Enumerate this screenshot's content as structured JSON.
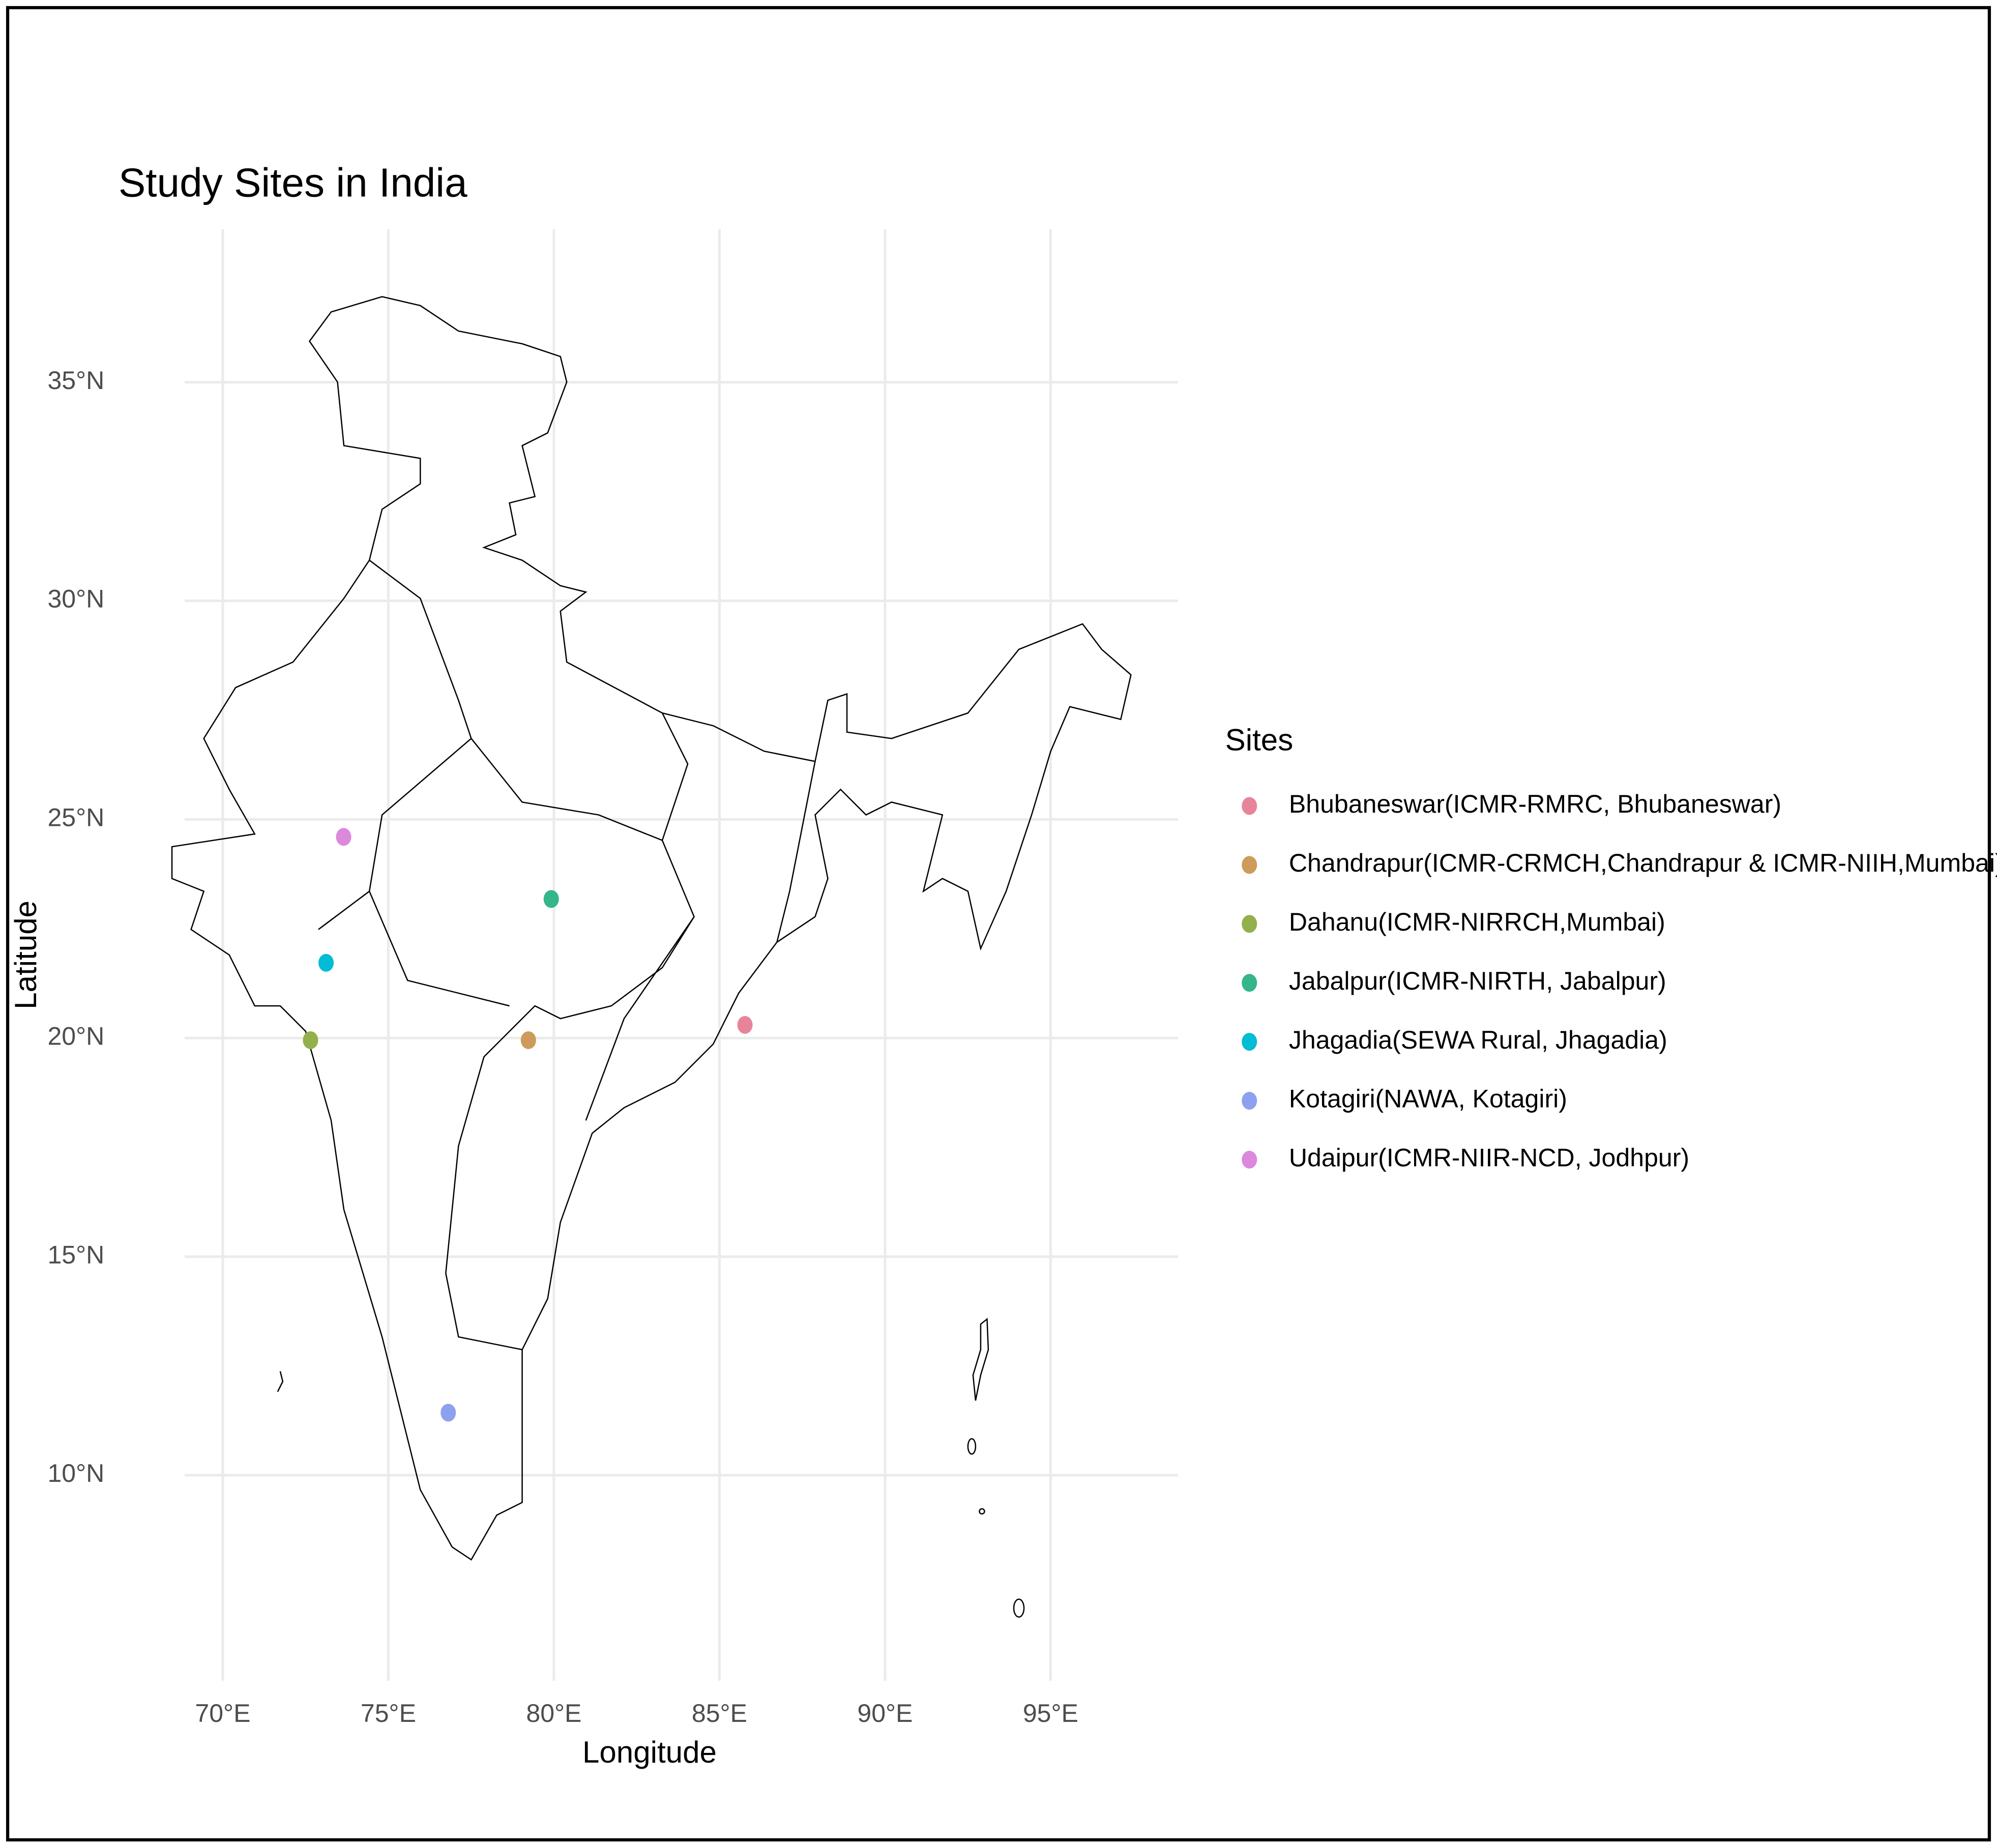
{
  "chart_data": {
    "type": "scatter",
    "title": "Study Sites in India",
    "x_label": "Longitude",
    "y_label": "Latitude",
    "legend_title": "Sites",
    "legend": "right",
    "grid": true,
    "xlim": [
      68.85,
      98.85
    ],
    "ylim": [
      5.3,
      38.5
    ],
    "xticks": [
      {
        "value": 70,
        "label": "70°E"
      },
      {
        "value": 75,
        "label": "75°E"
      },
      {
        "value": 80,
        "label": "80°E"
      },
      {
        "value": 85,
        "label": "85°E"
      },
      {
        "value": 90,
        "label": "90°E"
      },
      {
        "value": 95,
        "label": "95°E"
      }
    ],
    "yticks": [
      {
        "value": 10,
        "label": "10°N"
      },
      {
        "value": 15,
        "label": "15°N"
      },
      {
        "value": 20,
        "label": "20°N"
      },
      {
        "value": 25,
        "label": "25°N"
      },
      {
        "value": 30,
        "label": "30°N"
      },
      {
        "value": 35,
        "label": "35°N"
      }
    ],
    "series": [
      {
        "name": "Bhubaneswar(ICMR-RMRC, Bhubaneswar)",
        "color": "#e8849a",
        "x": [
          85.77
        ],
        "values": [
          20.3
        ]
      },
      {
        "name": "Chandrapur(ICMR-CRMCH,Chandrapur & ICMR-NIIH,Mumbai)",
        "color": "#cd9b5a",
        "x": [
          79.23
        ],
        "values": [
          19.95
        ]
      },
      {
        "name": "Dahanu(ICMR-NIRRCH,Mumbai)",
        "color": "#93b04b",
        "x": [
          72.65
        ],
        "values": [
          19.95
        ]
      },
      {
        "name": "Jabalpur(ICMR-NIRTH, Jabalpur)",
        "color": "#34b58a",
        "x": [
          79.92
        ],
        "values": [
          23.18
        ]
      },
      {
        "name": "Jhagadia(SEWA Rural, Jhagadia)",
        "color": "#00bcd4",
        "x": [
          73.12
        ],
        "values": [
          21.72
        ]
      },
      {
        "name": "Kotagiri(NAWA, Kotagiri)",
        "color": "#8ea1ef",
        "x": [
          76.81
        ],
        "values": [
          11.43
        ]
      },
      {
        "name": "Udaipur(ICMR-NIIR-NCD, Jodhpur)",
        "color": "#dc89dd",
        "x": [
          73.65
        ],
        "values": [
          24.6
        ]
      }
    ]
  }
}
